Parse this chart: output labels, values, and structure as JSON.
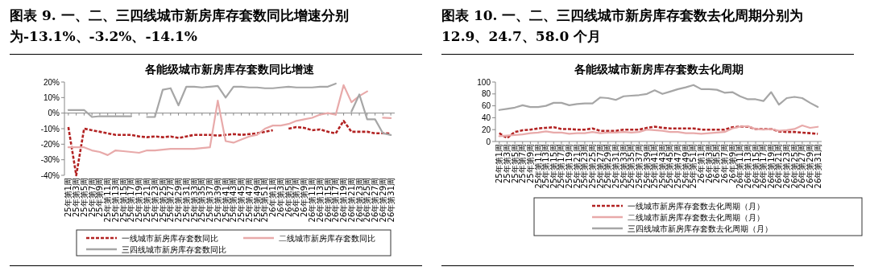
{
  "chart_data": [
    {
      "type": "line",
      "title": "图表 9. 一、二、三四线城市新房库存套数同比增速分别为-13.1%、-3.2%、-14.1%",
      "subtitle": "各能级城市新房库存套数同比增速",
      "categories": [
        "25年第1周",
        "25年第3周",
        "25年第5周",
        "25年第7周",
        "25年第9周",
        "25年第11周",
        "25年第13周",
        "25年第15周",
        "25年第17周",
        "25年第19周",
        "25年第21周",
        "25年第23周",
        "25年第25周",
        "25年第27周",
        "25年第29周",
        "25年第31周",
        "25年第33周",
        "25年第35周",
        "25年第37周",
        "25年第39周",
        "25年第41周",
        "25年第43周",
        "25年第45周",
        "25年第47周",
        "25年第49周",
        "25年第51周",
        "26年第1周",
        "26年第3周",
        "26年第5周",
        "26年第7周",
        "26年第9周",
        "26年第11周",
        "26年第13周",
        "26年第15周",
        "26年第17周",
        "26年第19周",
        "26年第21周",
        "26年第23周",
        "26年第25周",
        "26年第27周",
        "26年第29周",
        "26年第31周"
      ],
      "series": [
        {
          "name": "一线城市新房库存套数同比",
          "color": "#b22222",
          "line_style": "dashed",
          "values": [
            -9,
            -40,
            -10,
            -11,
            -12,
            -13,
            -14,
            -14,
            -14,
            -15,
            -15.5,
            -15,
            -15.5,
            -15,
            -16,
            -15,
            -14,
            -14,
            -14,
            -14.5,
            -14,
            -13.5,
            -14,
            -13.5,
            -13,
            -12,
            -11,
            null,
            -10,
            -9,
            -9.5,
            -11,
            -10.5,
            -12,
            -13,
            -5,
            -12,
            -12,
            -12,
            -13,
            -13,
            -13.1
          ]
        },
        {
          "name": "二线城市新房库存套数同比",
          "color": "#e8aaaa",
          "line_style": "solid",
          "values": [
            -22,
            -22,
            -22,
            -24,
            -25,
            -27,
            -24,
            -24.5,
            -25,
            -25.5,
            -24,
            -24,
            -23.5,
            -23,
            -23,
            -23,
            -23,
            -22.5,
            -22,
            8,
            -18,
            -19,
            -17,
            -15,
            -14,
            -10,
            -8,
            -8,
            -7,
            -5,
            -4,
            -3,
            -1,
            0,
            -1,
            18,
            7,
            11,
            14,
            null,
            -3,
            -3.2
          ]
        },
        {
          "name": "三四线城市新房库存套数同比",
          "color": "#a6a6a6",
          "line_style": "solid",
          "values": [
            2,
            2,
            2,
            -2.5,
            -2,
            -2,
            -2,
            -2,
            -2,
            null,
            -2.5,
            -2.5,
            15,
            16,
            5,
            17,
            17,
            16.5,
            17,
            17.5,
            10,
            17,
            17,
            16.5,
            16.5,
            16,
            16,
            16.5,
            17,
            16.5,
            16.5,
            16.5,
            17,
            17,
            19,
            null,
            1,
            12,
            -4,
            -4,
            -13,
            -14.1
          ]
        }
      ],
      "ylim": [
        -40,
        20
      ],
      "yticks": [
        {
          "value": -40,
          "label": "-40%"
        },
        {
          "value": -30,
          "label": "-30%"
        },
        {
          "value": -20,
          "label": "-20%"
        },
        {
          "value": -10,
          "label": "-10%"
        },
        {
          "value": 0,
          "label": "0%"
        },
        {
          "value": 10,
          "label": "10%"
        },
        {
          "value": 20,
          "label": "20%"
        }
      ],
      "legend": "bottom"
    },
    {
      "type": "line",
      "title": "图表 10. 一、二、三四线城市新房库存套数去化周期分别为 12.9、24.7、58.0 个月",
      "subtitle": "各能级城市新房库存套数去化周期",
      "categories": [
        "25年第1周",
        "25年第3周",
        "25年第5周",
        "25年第7周",
        "25年第9周",
        "25年第11周",
        "25年第13周",
        "25年第15周",
        "25年第17周",
        "25年第19周",
        "25年第21周",
        "25年第23周",
        "25年第25周",
        "25年第27周",
        "25年第29周",
        "25年第31周",
        "25年第33周",
        "25年第35周",
        "25年第37周",
        "25年第39周",
        "25年第41周",
        "25年第43周",
        "25年第45周",
        "25年第47周",
        "25年第49周",
        "25年第51周",
        "26年第1周",
        "26年第3周",
        "26年第5周",
        "26年第7周",
        "26年第9周",
        "26年第11周",
        "26年第13周",
        "26年第15周",
        "26年第17周",
        "26年第19周",
        "26年第21周",
        "26年第23周",
        "26年第25周",
        "26年第27周",
        "26年第29周",
        "26年第31周"
      ],
      "series": [
        {
          "name": "一线城市新房库存套数去化周期（月）",
          "color": "#b22222",
          "line_style": "dashed",
          "values": [
            14,
            6,
            16,
            19,
            20,
            22,
            23,
            24,
            21,
            21,
            20,
            20,
            22,
            18,
            18,
            18,
            20,
            20,
            20,
            23,
            25,
            23,
            22,
            22,
            22,
            22,
            20,
            20,
            20,
            20,
            24,
            25,
            25,
            21,
            21,
            21,
            17,
            16,
            16,
            15,
            14,
            12.9
          ]
        },
        {
          "name": "二线城市新房库存套数去化周期（月）",
          "color": "#e8aaaa",
          "line_style": "solid",
          "values": [
            9,
            10,
            11,
            12,
            14,
            15,
            17,
            15,
            15,
            13,
            14,
            14,
            16,
            14,
            15,
            15,
            16,
            15,
            16,
            20,
            19,
            18,
            16,
            16,
            14,
            14,
            13,
            14,
            15,
            16,
            22,
            25,
            26,
            21,
            20,
            21,
            18,
            19,
            21,
            27,
            23,
            24.7
          ]
        },
        {
          "name": "三四线城市新房库存套数去化周期（月）",
          "color": "#a6a6a6",
          "line_style": "solid",
          "values": [
            53,
            55,
            57,
            61,
            58,
            58,
            60,
            65,
            65,
            61,
            63,
            64,
            64,
            74,
            73,
            70,
            76,
            77,
            78,
            80,
            86,
            80,
            84,
            88,
            91,
            95,
            88,
            88,
            87,
            82,
            83,
            76,
            71,
            71,
            68,
            83,
            62,
            73,
            75,
            73,
            65,
            58
          ]
        }
      ],
      "ylim": [
        0,
        100
      ],
      "yticks": [
        0,
        20,
        40,
        60,
        80,
        100
      ],
      "legend": "bottom"
    }
  ]
}
